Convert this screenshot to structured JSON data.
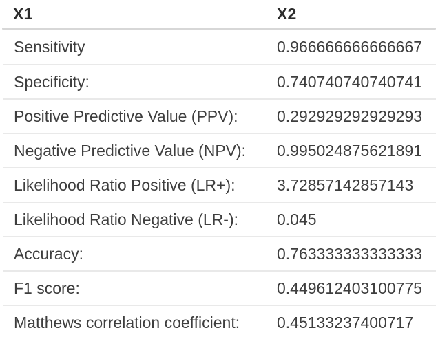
{
  "table": {
    "columns": [
      "X1",
      "X2"
    ],
    "rows": [
      {
        "label": "Sensitivity",
        "value": "0.966666666666667"
      },
      {
        "label": "Specificity:",
        "value": "0.740740740740741"
      },
      {
        "label": "Positive Predictive Value (PPV):",
        "value": "0.292929292929293"
      },
      {
        "label": "Negative Predictive Value (NPV):",
        "value": "0.995024875621891"
      },
      {
        "label": "Likelihood Ratio Positive (LR+):",
        "value": "3.72857142857143"
      },
      {
        "label": "Likelihood Ratio Negative (LR-):",
        "value": "0.045"
      },
      {
        "label": "Accuracy:",
        "value": "0.763333333333333"
      },
      {
        "label": "F1 score:",
        "value": "0.449612403100775"
      },
      {
        "label": "Matthews correlation coefficient:",
        "value": "0.45133237400717"
      }
    ],
    "colors": {
      "header_text": "#2d2d2d",
      "body_text": "#3e3e3e",
      "header_divider": "#d7d7d7",
      "row_divider": "#e9e9e9",
      "background": "#ffffff"
    }
  }
}
